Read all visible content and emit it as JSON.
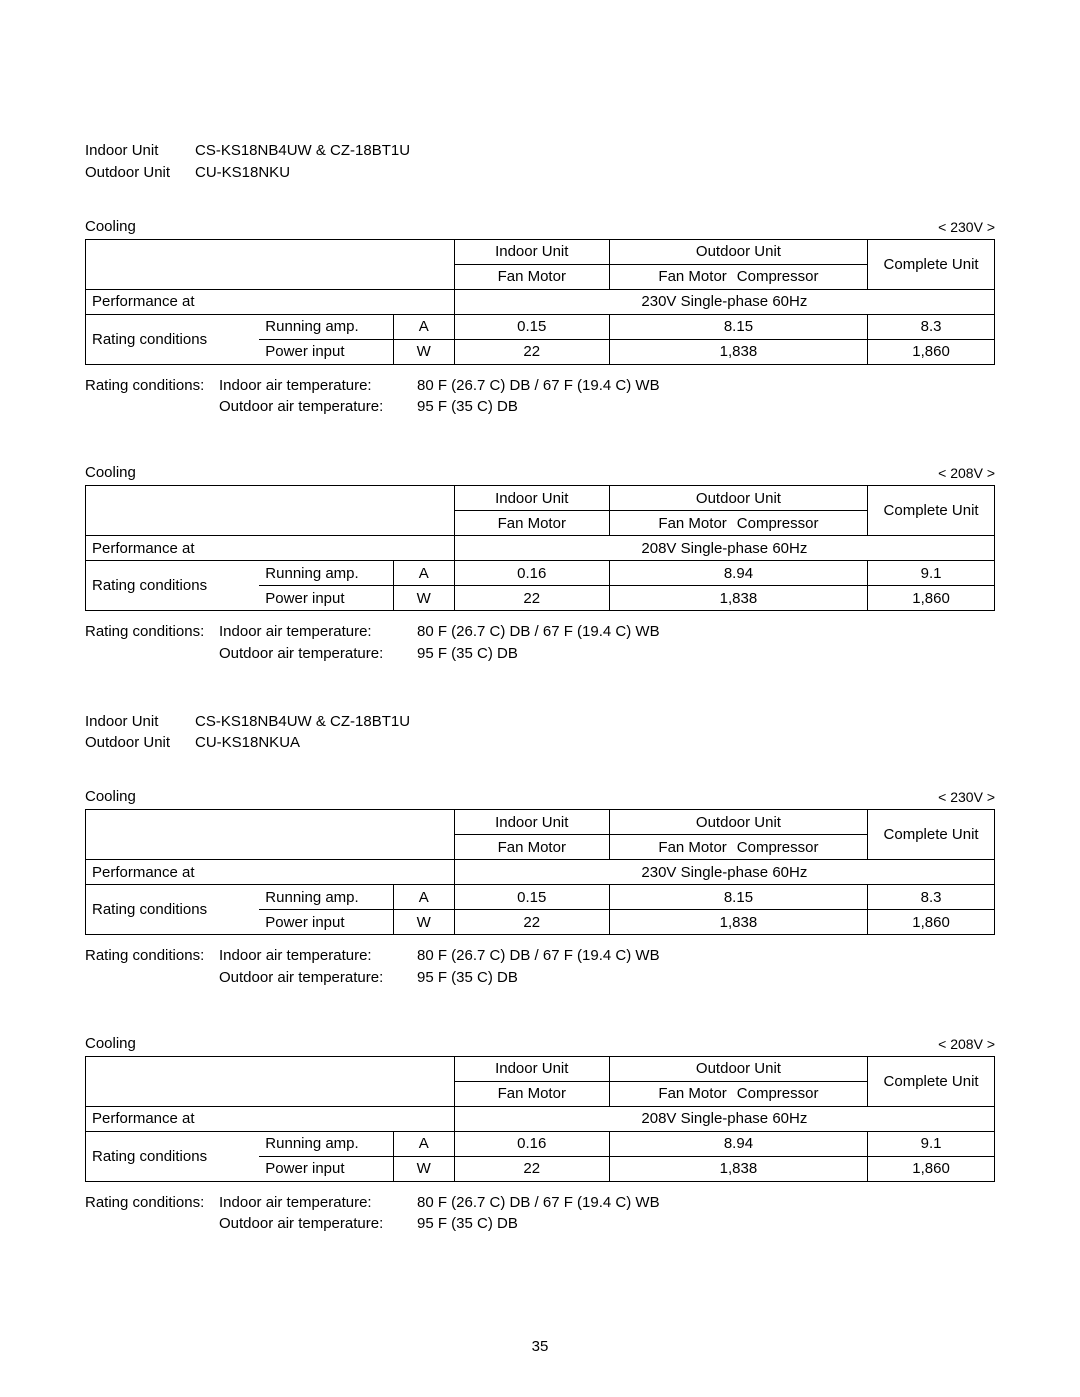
{
  "blocks": [
    {
      "indoor_unit_label": "Indoor Unit",
      "indoor_unit_val": "CS-KS18NB4UW & CZ-18BT1U",
      "outdoor_unit_label": "Outdoor Unit",
      "outdoor_unit_val": "CU-KS18NKU",
      "sections": [
        {
          "title": "Cooling",
          "voltage": "< 230V >",
          "performance_label": "Performance at",
          "performance_value": "230V Single-phase 60Hz",
          "running": {
            "indoor": "0.15",
            "outdoor": "8.15",
            "complete": "8.3"
          },
          "power": {
            "indoor": "22",
            "outdoor": "1,838",
            "complete": "1,860"
          }
        },
        {
          "title": "Cooling",
          "voltage": "< 208V >",
          "performance_label": "Performance at",
          "performance_value": "208V Single-phase 60Hz",
          "running": {
            "indoor": "0.16",
            "outdoor": "8.94",
            "complete": "9.1"
          },
          "power": {
            "indoor": "22",
            "outdoor": "1,838",
            "complete": "1,860"
          }
        }
      ]
    },
    {
      "indoor_unit_label": "Indoor Unit",
      "indoor_unit_val": "CS-KS18NB4UW & CZ-18BT1U",
      "outdoor_unit_label": "Outdoor Unit",
      "outdoor_unit_val": "CU-KS18NKUA",
      "sections": [
        {
          "title": "Cooling",
          "voltage": "< 230V >",
          "performance_label": "Performance at",
          "performance_value": "230V Single-phase 60Hz",
          "running": {
            "indoor": "0.15",
            "outdoor": "8.15",
            "complete": "8.3"
          },
          "power": {
            "indoor": "22",
            "outdoor": "1,838",
            "complete": "1,860"
          }
        },
        {
          "title": "Cooling",
          "voltage": "< 208V >",
          "performance_label": "Performance at",
          "performance_value": "208V Single-phase 60Hz",
          "running": {
            "indoor": "0.16",
            "outdoor": "8.94",
            "complete": "9.1"
          },
          "power": {
            "indoor": "22",
            "outdoor": "1,838",
            "complete": "1,860"
          }
        }
      ]
    }
  ],
  "table_header": {
    "indoor": "Indoor Unit",
    "outdoor": "Outdoor Unit",
    "complete": "Complete Unit",
    "fan_motor": "Fan Motor",
    "compressor": "Compressor",
    "rating_conditions": "Rating conditions",
    "running_amp": "Running amp.",
    "power_input": "Power input",
    "A": "A",
    "W": "W"
  },
  "conditions": {
    "label": "Rating conditions:",
    "indoor_label": "Indoor air temperature:",
    "indoor_val": "80  F (26.7  C) DB / 67  F (19.4  C) WB",
    "outdoor_label": "Outdoor air temperature:",
    "outdoor_val": "95  F (35  C) DB"
  },
  "page_number": "35",
  "style": {
    "text_color": "#000000",
    "background_color": "#ffffff",
    "border_color": "#000000",
    "font_family": "Arial",
    "base_fontsize": 15
  }
}
